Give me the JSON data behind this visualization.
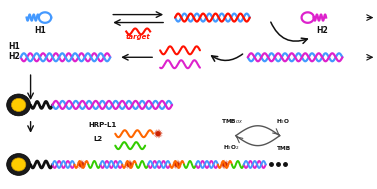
{
  "bg_color": "#ffffff",
  "colors": {
    "blue": "#4499ff",
    "magenta": "#dd22cc",
    "red": "#ff1100",
    "orange": "#ff6600",
    "green": "#33cc00",
    "black": "#111111",
    "yellow": "#ffcc00",
    "gray": "#555555",
    "burst": "#cc2200",
    "dark": "#222222"
  },
  "labels": {
    "H1": "H1",
    "H2": "H2",
    "target": "target",
    "HRP_L1": "HRP-L1",
    "L2": "L2"
  }
}
